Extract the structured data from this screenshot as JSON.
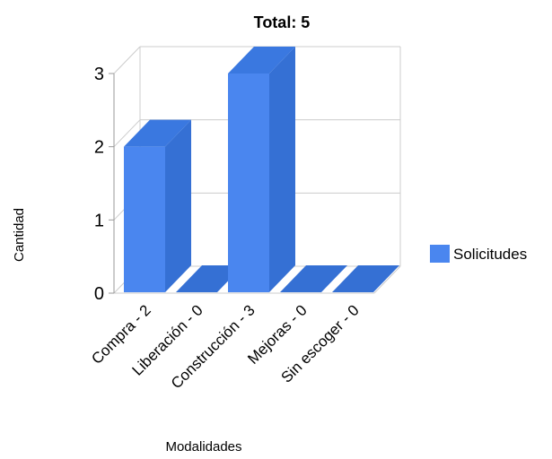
{
  "chart_data": {
    "type": "bar",
    "title": "Total: 5",
    "xlabel": "Modalidades",
    "ylabel": "Cantidad",
    "categories": [
      "Compra - 2",
      "Liberación - 0",
      "Construcción - 3",
      "Mejoras - 0",
      "Sin escoger - 0"
    ],
    "series": [
      {
        "name": "Solicitudes",
        "values": [
          2,
          0,
          3,
          0,
          0
        ]
      }
    ],
    "ylim": [
      0,
      3
    ],
    "yticks": [
      "0",
      "1",
      "2",
      "3"
    ],
    "legend_position": "right",
    "style": "3d",
    "grid": true,
    "colors": {
      "bar_front": "#4a86ef",
      "bar_side": "#3570d4",
      "bar_top": "#3a78e0",
      "grid": "#cccccc",
      "axis": "#999999"
    }
  }
}
